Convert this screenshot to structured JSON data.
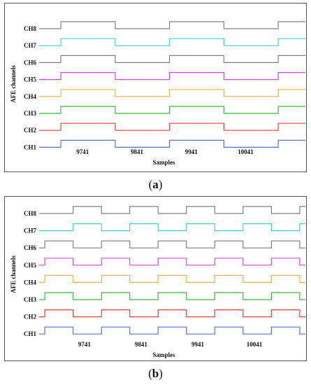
{
  "captions": {
    "a": "a",
    "b": "b"
  },
  "chart_data": [
    {
      "panel": "a",
      "type": "line",
      "xlabel": "Samples",
      "ylabel": "AFE channels",
      "xticks": [
        9741,
        9841,
        9941,
        10041
      ],
      "xlim": [
        9661,
        10151
      ],
      "series": [
        {
          "name": "CH8",
          "color": "#7f7f7f",
          "rise": [
            9701,
            9901,
            10101
          ],
          "fall": [
            9801,
            10001
          ],
          "start_high": false
        },
        {
          "name": "CH7",
          "color": "#3fd0d6",
          "rise": [
            9701,
            9901,
            10101
          ],
          "fall": [
            9801,
            10001
          ],
          "start_high": false
        },
        {
          "name": "CH6",
          "color": "#7f7f7f",
          "rise": [
            9701,
            9901,
            10101
          ],
          "fall": [
            9801,
            10001
          ],
          "start_high": false
        },
        {
          "name": "CH5",
          "color": "#d24bd8",
          "rise": [
            9701,
            9901,
            10101
          ],
          "fall": [
            9801,
            10001
          ],
          "start_high": false
        },
        {
          "name": "CH4",
          "color": "#e8b54a",
          "rise": [
            9701,
            9901,
            10101
          ],
          "fall": [
            9801,
            10001
          ],
          "start_high": false
        },
        {
          "name": "CH3",
          "color": "#3fb54a",
          "rise": [
            9701,
            9901,
            10101
          ],
          "fall": [
            9801,
            10001
          ],
          "start_high": false
        },
        {
          "name": "CH2",
          "color": "#ef3d3d",
          "rise": [
            9701,
            9901,
            10101
          ],
          "fall": [
            9801,
            10001
          ],
          "start_high": false
        },
        {
          "name": "CH1",
          "color": "#5b6fd8",
          "rise": [
            9701,
            9901,
            10101
          ],
          "fall": [
            9801,
            10001
          ],
          "start_high": false
        }
      ]
    },
    {
      "panel": "b",
      "type": "line",
      "xlabel": "Samples",
      "ylabel": "AFE channels",
      "xticks": [
        9741,
        9841,
        9941,
        10041
      ],
      "xlim": [
        9661,
        10131
      ],
      "series": [
        {
          "name": "CH8",
          "color": "#7f7f7f",
          "rise": [
            9721,
            9821,
            9921,
            10021,
            10121
          ],
          "fall": [
            9671,
            9771,
            9871,
            9971,
            10071
          ],
          "start_high": false
        },
        {
          "name": "CH7",
          "color": "#3fd0d6",
          "rise": [
            9721,
            9821,
            9921,
            10021,
            10121
          ],
          "fall": [
            9671,
            9771,
            9871,
            9971,
            10071
          ],
          "start_high": false
        },
        {
          "name": "CH6",
          "color": "#7f7f7f",
          "rise": [
            9671,
            9771,
            9871,
            9971,
            10071
          ],
          "fall": [
            9721,
            9821,
            9921,
            10021,
            10121
          ],
          "start_high": false
        },
        {
          "name": "CH5",
          "color": "#d24bd8",
          "rise": [
            9671,
            9771,
            9871,
            9971,
            10071
          ],
          "fall": [
            9721,
            9821,
            9921,
            10021,
            10121
          ],
          "start_high": false
        },
        {
          "name": "CH4",
          "color": "#e8b54a",
          "rise": [
            9671,
            9771,
            9871,
            9971,
            10071
          ],
          "fall": [
            9721,
            9821,
            9921,
            10021,
            10121
          ],
          "start_high": false
        },
        {
          "name": "CH3",
          "color": "#3fb54a",
          "rise": [
            9671,
            9771,
            9871,
            9971,
            10071
          ],
          "fall": [
            9721,
            9821,
            9921,
            10021,
            10121
          ],
          "start_high": false
        },
        {
          "name": "CH2",
          "color": "#ef3d3d",
          "rise": [
            9671,
            9771,
            9871,
            9971,
            10071
          ],
          "fall": [
            9721,
            9821,
            9921,
            10021,
            10121
          ],
          "start_high": false
        },
        {
          "name": "CH1",
          "color": "#5b6fd8",
          "rise": [
            9671,
            9771,
            9871,
            9971,
            10071
          ],
          "fall": [
            9721,
            9821,
            9921,
            10021,
            10121
          ],
          "start_high": false
        }
      ]
    }
  ]
}
